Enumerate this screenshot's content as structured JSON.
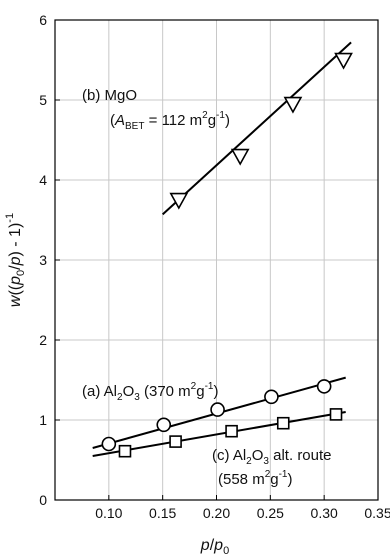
{
  "chart_data": {
    "type": "scatter",
    "xlim": [
      0.05,
      0.35
    ],
    "ylim": [
      0,
      6
    ],
    "x_ticks": [
      0.1,
      0.15,
      0.2,
      0.25,
      0.3,
      0.35
    ],
    "x_tick_labels": [
      "0.10",
      "0.15",
      "0.20",
      "0.25",
      "0.30",
      "0.35"
    ],
    "y_ticks": [
      0,
      1,
      2,
      3,
      4,
      5,
      6
    ],
    "y_tick_labels": [
      "0",
      "1",
      "2",
      "3",
      "4",
      "5",
      "6"
    ],
    "grid": true,
    "xlabel": {
      "main": "p",
      "sep": "/",
      "main2": "p",
      "sub": "0"
    },
    "ylabel": {
      "w": "w",
      "open": "((",
      "p": "p",
      "sub0": "0",
      "slash": "/",
      "p2": "p",
      "close": ") - 1)",
      "sup": "-1"
    },
    "series": [
      {
        "marker": "triangle-down",
        "label_parts": {
          "main": "(b) MgO"
        },
        "sublabel_parts": {
          "open": "(",
          "A": "A",
          "sub": "BET",
          "eq": " = 112 m",
          "sup1": "2",
          "g": "g",
          "sup2": "-1",
          "close": ")"
        },
        "points": [
          [
            0.165,
            3.75
          ],
          [
            0.222,
            4.3
          ],
          [
            0.271,
            4.95
          ],
          [
            0.318,
            5.5
          ]
        ],
        "fit": [
          [
            0.15,
            3.57
          ],
          [
            0.325,
            5.72
          ]
        ]
      },
      {
        "marker": "circle",
        "label_parts": {
          "pre": "(a) Al",
          "sub1": "2",
          "o": "O",
          "sub2": "3",
          "rest": " (370 m",
          "sup1": "2",
          "g": "g",
          "sup2": "-1",
          "close": ")"
        },
        "points": [
          [
            0.1,
            0.7
          ],
          [
            0.151,
            0.94
          ],
          [
            0.201,
            1.13
          ],
          [
            0.251,
            1.29
          ],
          [
            0.3,
            1.42
          ]
        ],
        "fit": [
          [
            0.085,
            0.65
          ],
          [
            0.32,
            1.53
          ]
        ]
      },
      {
        "marker": "square",
        "label_parts": {
          "pre": "(c) Al",
          "sub1": "2",
          "o": "O",
          "sub2": "3",
          "rest": " alt. route"
        },
        "sublabel_parts": {
          "open": "(558 m",
          "sup1": "2",
          "g": "g",
          "sup2": "-1",
          "close": ")"
        },
        "points": [
          [
            0.115,
            0.61
          ],
          [
            0.162,
            0.73
          ],
          [
            0.214,
            0.86
          ],
          [
            0.262,
            0.96
          ],
          [
            0.311,
            1.07
          ]
        ],
        "fit": [
          [
            0.085,
            0.55
          ],
          [
            0.32,
            1.1
          ]
        ]
      }
    ]
  }
}
